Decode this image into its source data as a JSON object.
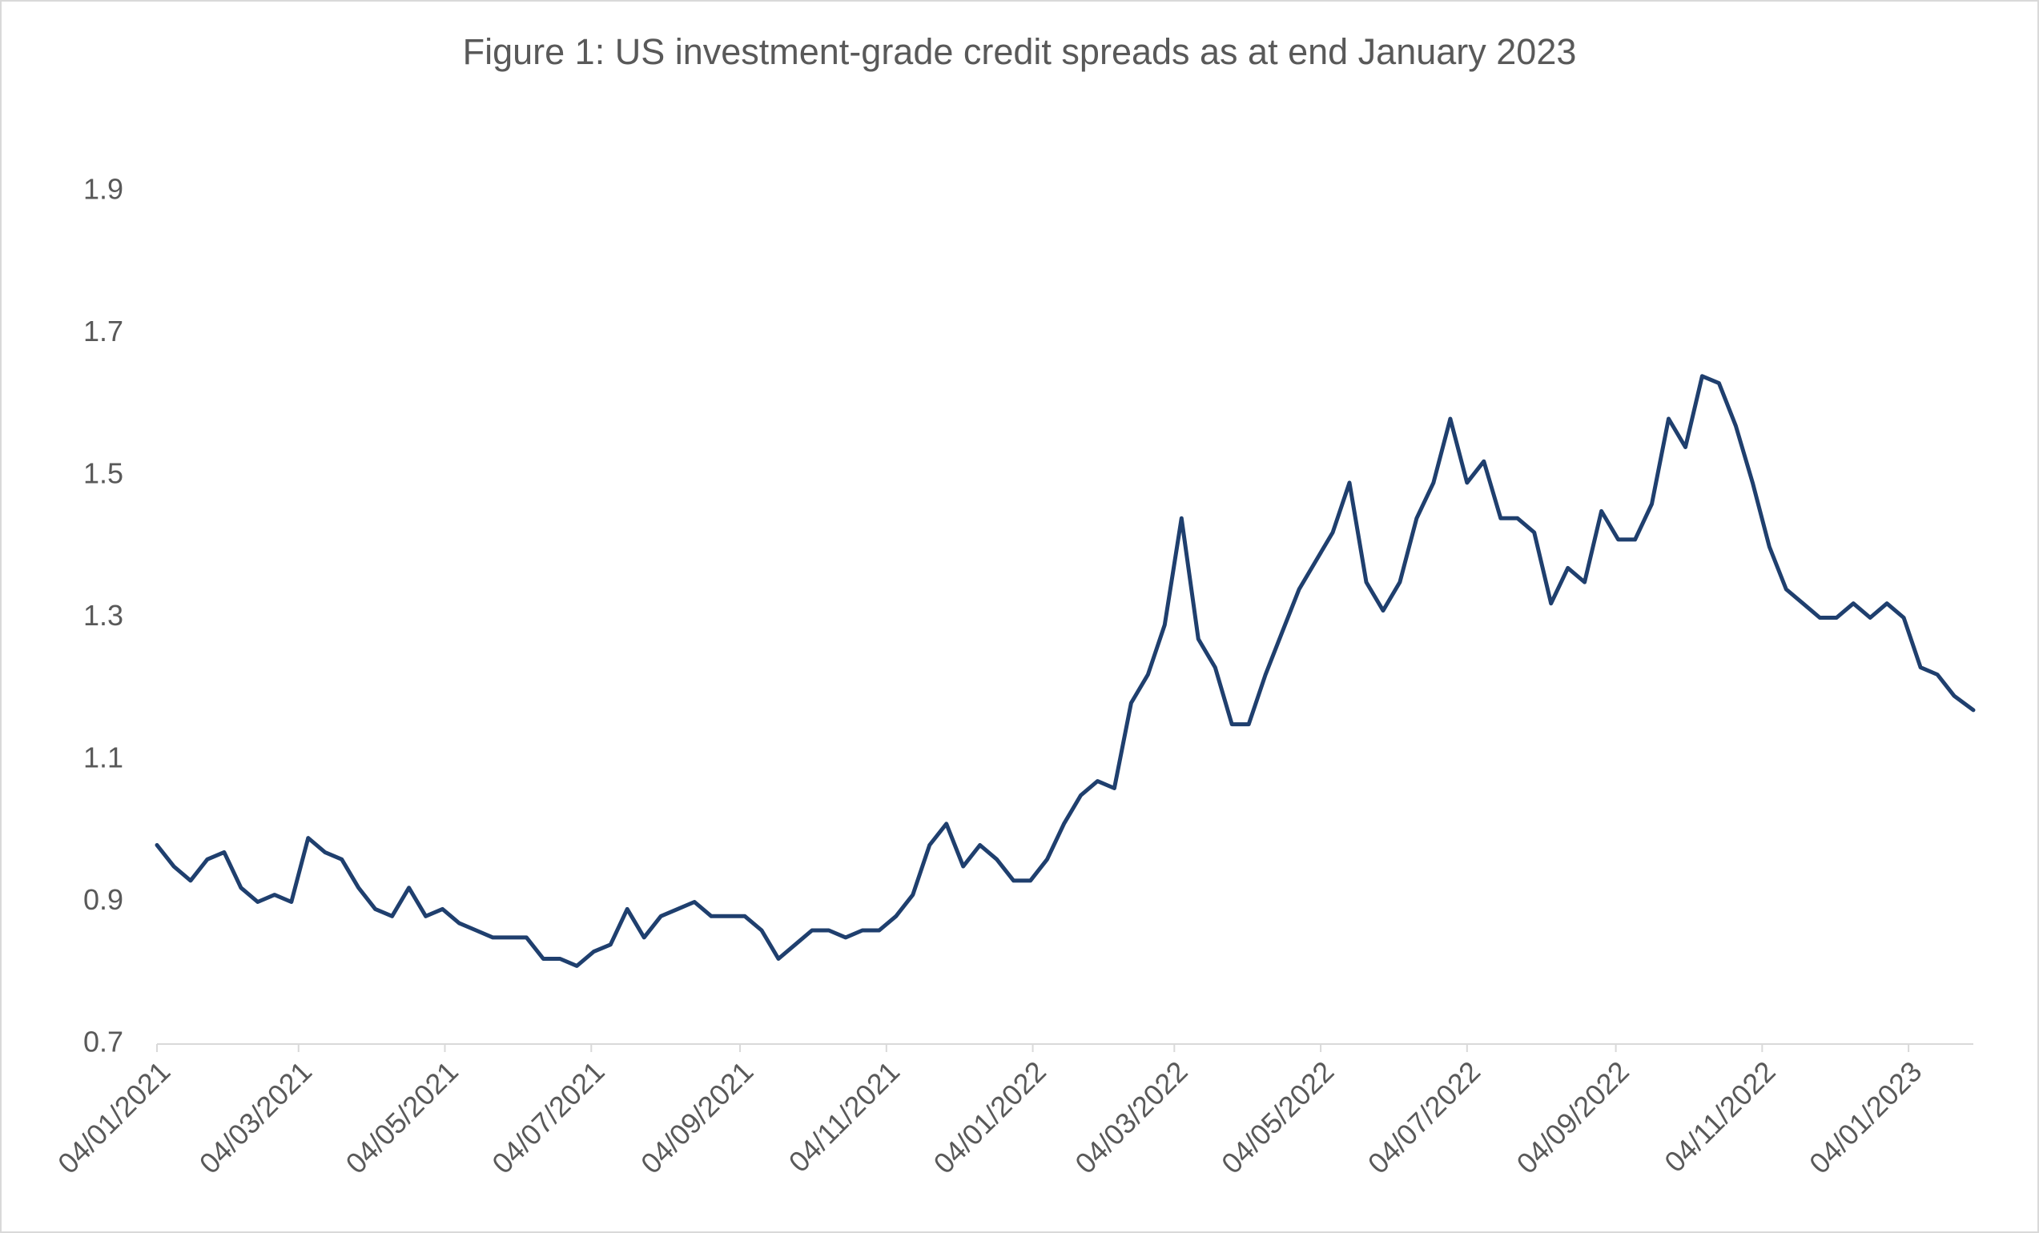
{
  "chart_data": {
    "type": "line",
    "title": "Figure 1: US investment-grade credit spreads as at end January 2023",
    "x": [
      "04/01/2021",
      "11/01/2021",
      "18/01/2021",
      "25/01/2021",
      "01/02/2021",
      "08/02/2021",
      "15/02/2021",
      "22/02/2021",
      "01/03/2021",
      "08/03/2021",
      "15/03/2021",
      "22/03/2021",
      "29/03/2021",
      "05/04/2021",
      "12/04/2021",
      "19/04/2021",
      "26/04/2021",
      "03/05/2021",
      "10/05/2021",
      "17/05/2021",
      "24/05/2021",
      "31/05/2021",
      "07/06/2021",
      "14/06/2021",
      "21/06/2021",
      "28/06/2021",
      "05/07/2021",
      "12/07/2021",
      "19/07/2021",
      "26/07/2021",
      "02/08/2021",
      "09/08/2021",
      "16/08/2021",
      "23/08/2021",
      "30/08/2021",
      "06/09/2021",
      "13/09/2021",
      "20/09/2021",
      "27/09/2021",
      "04/10/2021",
      "11/10/2021",
      "18/10/2021",
      "25/10/2021",
      "01/11/2021",
      "08/11/2021",
      "15/11/2021",
      "22/11/2021",
      "29/11/2021",
      "06/12/2021",
      "13/12/2021",
      "20/12/2021",
      "27/12/2021",
      "03/01/2022",
      "10/01/2022",
      "17/01/2022",
      "24/01/2022",
      "31/01/2022",
      "07/02/2022",
      "14/02/2022",
      "21/02/2022",
      "28/02/2022",
      "07/03/2022",
      "14/03/2022",
      "21/03/2022",
      "28/03/2022",
      "04/04/2022",
      "11/04/2022",
      "18/04/2022",
      "25/04/2022",
      "02/05/2022",
      "09/05/2022",
      "16/05/2022",
      "23/05/2022",
      "30/05/2022",
      "06/06/2022",
      "13/06/2022",
      "20/06/2022",
      "27/06/2022",
      "04/07/2022",
      "11/07/2022",
      "18/07/2022",
      "25/07/2022",
      "01/08/2022",
      "08/08/2022",
      "15/08/2022",
      "22/08/2022",
      "29/08/2022",
      "05/09/2022",
      "12/09/2022",
      "19/09/2022",
      "26/09/2022",
      "03/10/2022",
      "10/10/2022",
      "17/10/2022",
      "24/10/2022",
      "31/10/2022",
      "07/11/2022",
      "14/11/2022",
      "21/11/2022",
      "28/11/2022",
      "05/12/2022",
      "12/12/2022",
      "19/12/2022",
      "26/12/2022",
      "02/01/2023",
      "09/01/2023",
      "16/01/2023",
      "23/01/2023",
      "31/01/2023"
    ],
    "values": [
      0.98,
      0.95,
      0.93,
      0.96,
      0.97,
      0.92,
      0.9,
      0.91,
      0.9,
      0.99,
      0.97,
      0.96,
      0.92,
      0.89,
      0.88,
      0.92,
      0.88,
      0.89,
      0.87,
      0.86,
      0.85,
      0.85,
      0.85,
      0.82,
      0.82,
      0.81,
      0.83,
      0.84,
      0.89,
      0.85,
      0.88,
      0.89,
      0.9,
      0.88,
      0.88,
      0.88,
      0.86,
      0.82,
      0.84,
      0.86,
      0.86,
      0.85,
      0.86,
      0.86,
      0.88,
      0.91,
      0.98,
      1.01,
      0.95,
      0.98,
      0.96,
      0.93,
      0.93,
      0.96,
      1.01,
      1.05,
      1.07,
      1.06,
      1.18,
      1.22,
      1.29,
      1.44,
      1.27,
      1.23,
      1.15,
      1.15,
      1.22,
      1.28,
      1.34,
      1.38,
      1.42,
      1.49,
      1.35,
      1.31,
      1.35,
      1.44,
      1.49,
      1.58,
      1.49,
      1.52,
      1.44,
      1.44,
      1.42,
      1.32,
      1.37,
      1.35,
      1.45,
      1.41,
      1.41,
      1.46,
      1.58,
      1.54,
      1.64,
      1.63,
      1.57,
      1.49,
      1.4,
      1.34,
      1.32,
      1.3,
      1.3,
      1.32,
      1.3,
      1.32,
      1.3,
      1.23,
      1.22,
      1.19,
      1.17
    ],
    "color": "#1f3f6e",
    "xlim": [
      "04/01/2021",
      "31/01/2023"
    ],
    "xticks": [
      "04/01/2021",
      "04/03/2021",
      "04/05/2021",
      "04/07/2021",
      "04/09/2021",
      "04/11/2021",
      "04/01/2022",
      "04/03/2022",
      "04/05/2022",
      "04/07/2022",
      "04/09/2022",
      "04/11/2022",
      "04/01/2023"
    ],
    "ylim": [
      0.7,
      1.9
    ],
    "yticks": [
      0.7,
      0.9,
      1.1,
      1.3,
      1.5,
      1.7,
      1.9
    ],
    "grid": false
  }
}
